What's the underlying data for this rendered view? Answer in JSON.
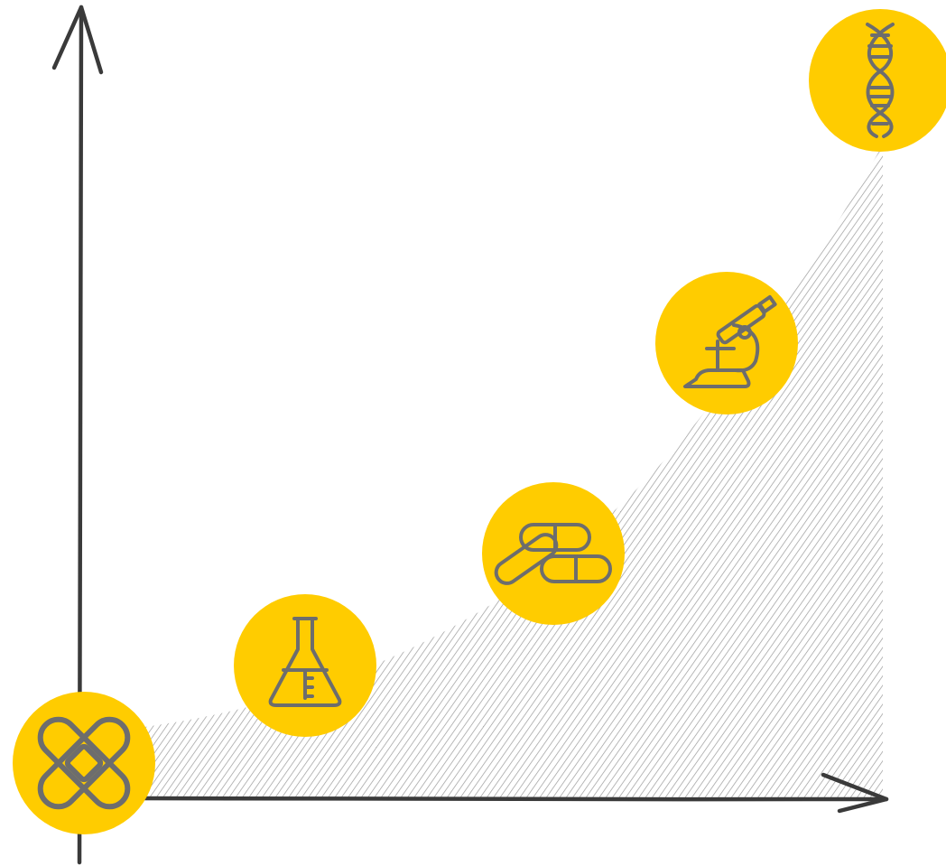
{
  "colors": {
    "background": "#ffffff",
    "axis": "#3a3a3a",
    "circle": "#ffcc00",
    "icon_stroke": "#6d6d6d",
    "hatch": "#9a9a9a"
  },
  "axes": {
    "x_arrow": "right",
    "y_arrow": "up",
    "x_label": "",
    "y_label": ""
  },
  "curve": {
    "shape": "exponential-growth",
    "fill": "diagonal-hatch"
  },
  "milestones": [
    {
      "icon": "bandage-icon",
      "order": 1
    },
    {
      "icon": "flask-icon",
      "order": 2
    },
    {
      "icon": "pills-icon",
      "order": 3
    },
    {
      "icon": "microscope-icon",
      "order": 4
    },
    {
      "icon": "dna-icon",
      "order": 5
    }
  ]
}
